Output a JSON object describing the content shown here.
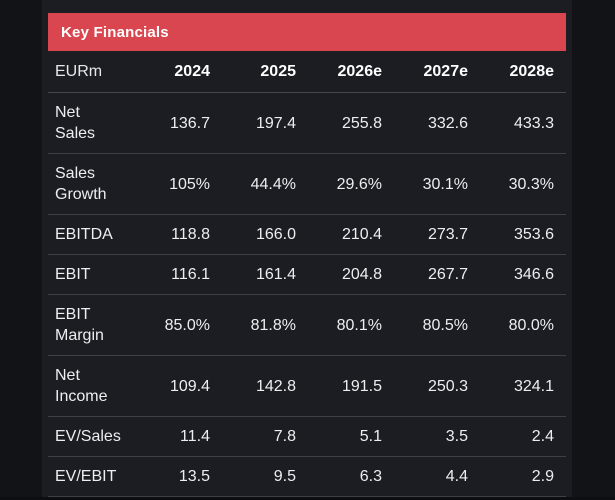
{
  "ui": {
    "title_bar": {
      "label": "Key Financials"
    },
    "colors": {
      "accent_red": "#d9464f",
      "panel_bg": "#1b1d22",
      "page_bg": "#121317",
      "divider": "#3d4046",
      "text": "#eceef0",
      "header_text": "#ffffff"
    }
  },
  "chart_data": {
    "type": "table",
    "title": "Key Financials",
    "unit_label": "EURm",
    "columns": [
      "2024",
      "2025",
      "2026e",
      "2027e",
      "2028e"
    ],
    "rows": [
      {
        "label": "Net Sales",
        "values": [
          "136.7",
          "197.4",
          "255.8",
          "332.6",
          "433.3"
        ]
      },
      {
        "label": "Sales Growth",
        "values": [
          "105%",
          "44.4%",
          "29.6%",
          "30.1%",
          "30.3%"
        ]
      },
      {
        "label": "EBITDA",
        "values": [
          "118.8",
          "166.0",
          "210.4",
          "273.7",
          "353.6"
        ]
      },
      {
        "label": "EBIT",
        "values": [
          "116.1",
          "161.4",
          "204.8",
          "267.7",
          "346.6"
        ]
      },
      {
        "label": "EBIT Margin",
        "values": [
          "85.0%",
          "81.8%",
          "80.1%",
          "80.5%",
          "80.0%"
        ]
      },
      {
        "label": "Net Income",
        "values": [
          "109.4",
          "142.8",
          "191.5",
          "250.3",
          "324.1"
        ]
      },
      {
        "label": "EV/Sales",
        "values": [
          "11.4",
          "7.8",
          "5.1",
          "3.5",
          "2.4"
        ]
      },
      {
        "label": "EV/EBIT",
        "values": [
          "13.5",
          "9.5",
          "6.3",
          "4.4",
          "2.9"
        ]
      }
    ]
  }
}
